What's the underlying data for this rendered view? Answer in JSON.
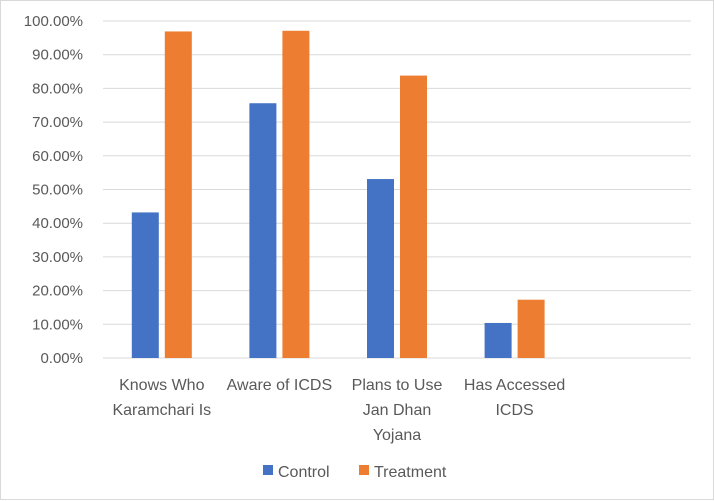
{
  "chart_data": {
    "type": "bar",
    "title": "",
    "xlabel": "",
    "ylabel": "",
    "categories": [
      [
        "Knows Who",
        "Karamchari Is"
      ],
      [
        "Aware of ICDS"
      ],
      [
        "Plans to Use",
        "Jan Dhan",
        "Yojana"
      ],
      [
        "Has Accessed",
        "ICDS"
      ],
      []
    ],
    "series": [
      {
        "name": "Control",
        "color": "#4472c4",
        "values": [
          43.2,
          75.6,
          53.1,
          10.4,
          null
        ]
      },
      {
        "name": "Treatment",
        "color": "#ed7d31",
        "values": [
          96.9,
          97.1,
          83.8,
          17.3,
          null
        ]
      }
    ],
    "ylim": [
      0,
      100
    ],
    "yticks": [
      "0.00%",
      "10.00%",
      "20.00%",
      "30.00%",
      "40.00%",
      "50.00%",
      "60.00%",
      "70.00%",
      "80.00%",
      "90.00%",
      "100.00%"
    ],
    "grid": true,
    "legend_position": "bottom"
  }
}
